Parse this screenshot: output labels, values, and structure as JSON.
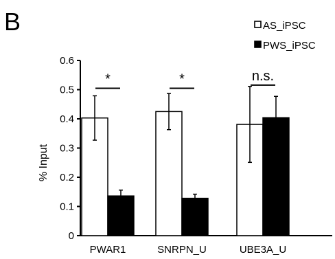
{
  "panel_label": "B",
  "chart_data": {
    "type": "bar",
    "categories": [
      "PWAR1",
      "SNRPN_U",
      "UBE3A_U"
    ],
    "series": [
      {
        "name": "AS_iPSC",
        "fill": "#ffffff",
        "values": [
          0.403,
          0.425,
          0.381
        ],
        "errors": [
          0.076,
          0.062,
          0.13
        ]
      },
      {
        "name": "PWS_iPSC",
        "fill": "#000000",
        "values": [
          0.136,
          0.128,
          0.404
        ],
        "errors": [
          0.02,
          0.014,
          0.073
        ]
      }
    ],
    "ylabel": "% Input",
    "ylim": [
      0,
      0.6
    ],
    "yticks": [
      "0",
      "0.1",
      "0.2",
      "0.3",
      "0.4",
      "0.5",
      "0.6"
    ],
    "significance": [
      "*",
      "*",
      "n.s."
    ],
    "legend_position": "top-right",
    "grid": false
  }
}
